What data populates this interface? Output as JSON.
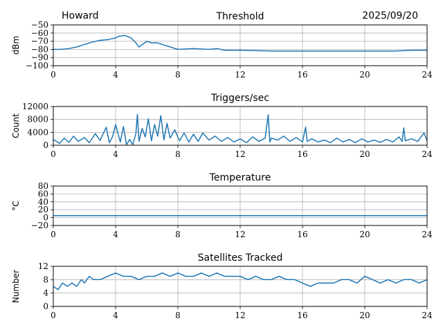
{
  "header": {
    "station": "Howard",
    "date": "2025/09/20"
  },
  "colors": {
    "series": "#1f77b4",
    "grid": "#b0b0b0"
  },
  "chart_data": [
    {
      "id": "threshold",
      "type": "line",
      "title": "Threshold",
      "xlabel": "",
      "ylabel": "dBm",
      "xlim": [
        0,
        24
      ],
      "ylim": [
        -100,
        -50
      ],
      "xticks": [
        0,
        4,
        8,
        12,
        16,
        20,
        24
      ],
      "yticks": [
        -100,
        -90,
        -80,
        -70,
        -60,
        -50
      ],
      "yticklabels": [
        "−100",
        "−90",
        "−80",
        "−70",
        "−60",
        "−50"
      ],
      "x": [
        0,
        0.5,
        1,
        1.5,
        2,
        2.5,
        3,
        3.5,
        4,
        4.2,
        4.6,
        5.0,
        5.3,
        5.5,
        5.8,
        6.0,
        6.3,
        6.7,
        7.0,
        7.5,
        8,
        9,
        10,
        10.5,
        11,
        12,
        14,
        16,
        18,
        20,
        22,
        23,
        24
      ],
      "values": [
        -80,
        -80,
        -79,
        -77,
        -74,
        -71,
        -69,
        -68,
        -66,
        -64,
        -63,
        -66,
        -72,
        -77,
        -73,
        -70,
        -72,
        -72,
        -74,
        -77,
        -80,
        -79,
        -80,
        -79,
        -81,
        -81,
        -82,
        -82,
        -82,
        -82,
        -82,
        -81,
        -81
      ]
    },
    {
      "id": "triggers",
      "type": "line",
      "title": "Triggers/sec",
      "xlabel": "",
      "ylabel": "Count",
      "xlim": [
        0,
        24
      ],
      "ylim": [
        0,
        12000
      ],
      "xticks": [
        0,
        4,
        8,
        12,
        16,
        20,
        24
      ],
      "yticks": [
        0,
        4000,
        8000,
        12000
      ],
      "yticklabels": [
        "0",
        "4000",
        "8000",
        "12000"
      ],
      "x": [
        0,
        0.4,
        0.7,
        1.0,
        1.3,
        1.6,
        2.0,
        2.3,
        2.7,
        3.0,
        3.4,
        3.6,
        3.8,
        4.0,
        4.3,
        4.5,
        4.7,
        4.9,
        5.1,
        5.3,
        5.4,
        5.5,
        5.7,
        5.9,
        6.1,
        6.3,
        6.5,
        6.7,
        6.9,
        7.1,
        7.3,
        7.5,
        7.8,
        8.1,
        8.4,
        8.7,
        9.0,
        9.3,
        9.6,
        10.0,
        10.4,
        10.8,
        11.2,
        11.6,
        12.0,
        12.4,
        12.8,
        13.2,
        13.6,
        13.8,
        13.9,
        14.0,
        14.4,
        14.8,
        15.2,
        15.6,
        16.0,
        16.2,
        16.3,
        16.6,
        17.0,
        17.4,
        17.8,
        18.2,
        18.6,
        19.0,
        19.4,
        19.8,
        20.2,
        20.6,
        21.0,
        21.4,
        21.8,
        22.2,
        22.4,
        22.5,
        22.6,
        23.0,
        23.4,
        23.8,
        24.0
      ],
      "values": [
        1800,
        600,
        2200,
        900,
        2800,
        1200,
        2400,
        800,
        3600,
        1500,
        5600,
        800,
        2600,
        6400,
        1000,
        5800,
        200,
        1800,
        200,
        3600,
        9600,
        1200,
        5200,
        2600,
        8200,
        1400,
        6400,
        2800,
        9200,
        1600,
        6800,
        2200,
        4800,
        1400,
        3800,
        1000,
        3400,
        1200,
        3800,
        1600,
        2800,
        1200,
        2400,
        1000,
        2000,
        800,
        2600,
        1200,
        2200,
        9400,
        1000,
        2200,
        1600,
        2800,
        1200,
        2400,
        1000,
        5600,
        1200,
        2000,
        1000,
        1600,
        800,
        2200,
        1000,
        1800,
        800,
        2000,
        1000,
        1600,
        900,
        1800,
        1000,
        2600,
        1200,
        5400,
        1400,
        2000,
        1200,
        3800,
        1400
      ]
    },
    {
      "id": "temperature",
      "type": "line",
      "title": "Temperature",
      "xlabel": "",
      "ylabel": "°C",
      "xlim": [
        0,
        24
      ],
      "ylim": [
        -20,
        80
      ],
      "xticks": [
        0,
        4,
        8,
        12,
        16,
        20,
        24
      ],
      "yticks": [
        -20,
        0,
        20,
        40,
        60,
        80
      ],
      "yticklabels": [
        "−20",
        "0",
        "20",
        "40",
        "60",
        "80"
      ],
      "x": [
        0,
        24
      ],
      "values": [
        5,
        5
      ]
    },
    {
      "id": "satellites",
      "type": "line",
      "title": "Satellites Tracked",
      "xlabel": "",
      "ylabel": "Number",
      "xlim": [
        0,
        24
      ],
      "ylim": [
        0,
        12
      ],
      "xticks": [
        0,
        4,
        8,
        12,
        16,
        20,
        24
      ],
      "yticks": [
        0,
        4,
        8,
        12
      ],
      "yticklabels": [
        "0",
        "4",
        "8",
        "12"
      ],
      "x": [
        0,
        0.3,
        0.6,
        0.9,
        1.2,
        1.5,
        1.8,
        2.0,
        2.3,
        2.6,
        3.0,
        3.5,
        4.0,
        4.5,
        5.0,
        5.5,
        6.0,
        6.5,
        7.0,
        7.5,
        8.0,
        8.5,
        9.0,
        9.5,
        10.0,
        10.5,
        11.0,
        11.5,
        12.0,
        12.5,
        13.0,
        13.5,
        14.0,
        14.5,
        15.0,
        15.5,
        16.0,
        16.5,
        17.0,
        17.5,
        18.0,
        18.5,
        19.0,
        19.5,
        20.0,
        20.5,
        21.0,
        21.5,
        22.0,
        22.5,
        23.0,
        23.5,
        24.0
      ],
      "values": [
        6,
        5,
        7,
        6,
        7,
        6,
        8,
        7,
        9,
        8,
        8,
        9,
        10,
        9,
        9,
        8,
        9,
        9,
        10,
        9,
        10,
        9,
        9,
        10,
        9,
        10,
        9,
        9,
        9,
        8,
        9,
        8,
        8,
        9,
        8,
        8,
        7,
        6,
        7,
        7,
        7,
        8,
        8,
        7,
        9,
        8,
        7,
        8,
        7,
        8,
        8,
        7,
        8
      ]
    }
  ]
}
